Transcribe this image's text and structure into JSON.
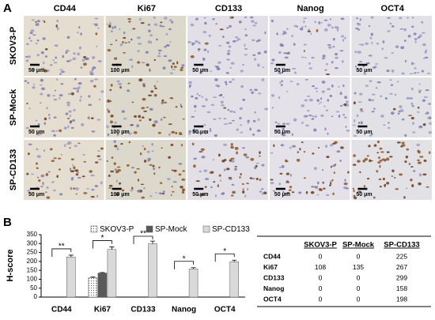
{
  "panel_a": {
    "label": "A",
    "columns": [
      "CD44",
      "Ki67",
      "CD133",
      "Nanog",
      "OCT4"
    ],
    "rows": [
      "SKOV3-P",
      "SP-Mock",
      "SP-CD133"
    ],
    "scale_bars": [
      [
        "50 μm",
        "100 μm",
        "50 μm",
        "50 μm",
        "50 μm"
      ],
      [
        "50 μm",
        "100 μm",
        "50 μm",
        "50 μm",
        "50 μm"
      ],
      [
        "50 μm",
        "100 μm",
        "50 μm",
        "50 μm",
        "50 μm"
      ]
    ]
  },
  "chart_data": {
    "type": "bar",
    "panel_label": "B",
    "y_label": "H-score",
    "categories": [
      "CD44",
      "Ki67",
      "CD133",
      "Nanog",
      "OCT4"
    ],
    "series": [
      {
        "name": "SKOV3-P",
        "color": "#f2f2f2",
        "hatch": "dots",
        "values": [
          0,
          108,
          0,
          0,
          0
        ],
        "errors": [
          0,
          5,
          0,
          0,
          0
        ]
      },
      {
        "name": "SP-Mock",
        "color": "#595959",
        "values": [
          0,
          135,
          0,
          0,
          0
        ],
        "errors": [
          0,
          3,
          0,
          0,
          0
        ]
      },
      {
        "name": "SP-CD133",
        "color": "#d9d9d9",
        "values": [
          225,
          267,
          299,
          158,
          198
        ],
        "errors": [
          10,
          14,
          15,
          7,
          9
        ]
      }
    ],
    "ylim": [
      0,
      350
    ],
    "yticks": [
      0,
      50,
      100,
      150,
      200,
      250,
      300,
      350
    ],
    "significance": [
      {
        "category": 0,
        "label": "**"
      },
      {
        "category": 1,
        "label": "*"
      },
      {
        "category": 2,
        "label": "**"
      },
      {
        "category": 3,
        "label": "*"
      },
      {
        "category": 4,
        "label": "*"
      }
    ]
  },
  "table": {
    "header": [
      "SKOV3-P",
      "SP-Mock",
      "SP-CD133"
    ],
    "rows": [
      {
        "label": "CD44",
        "cells": [
          0,
          0,
          225
        ]
      },
      {
        "label": "Ki67",
        "cells": [
          108,
          135,
          267
        ]
      },
      {
        "label": "CD133",
        "cells": [
          0,
          0,
          299
        ]
      },
      {
        "label": "Nanog",
        "cells": [
          0,
          0,
          158
        ]
      },
      {
        "label": "OCT4",
        "cells": [
          0,
          0,
          198
        ]
      }
    ]
  }
}
